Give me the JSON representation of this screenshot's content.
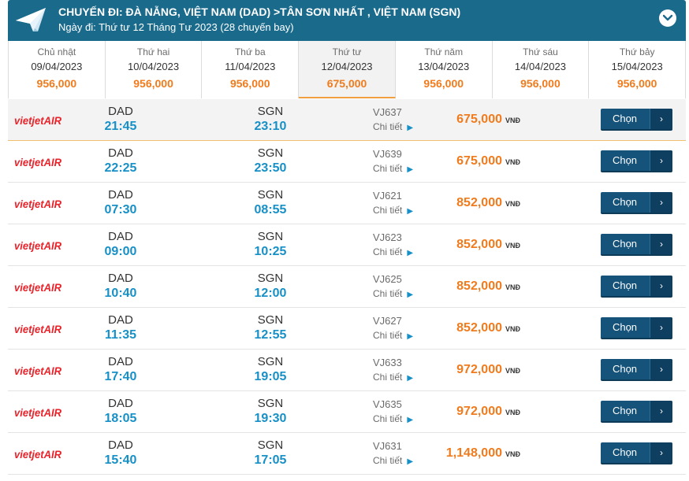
{
  "header": {
    "route": "CHUYẾN ĐI: ĐÀ NẴNG, VIỆT NAM (DAD) >TÂN SƠN NHẤT , VIỆT NAM (SGN)",
    "date_line": "Ngày đi: Thứ tư 12 Tháng Tư 2023 (28 chuyến bay)",
    "icon": "paper-plane-icon",
    "collapse_icon": "chevron-down-icon"
  },
  "dates": [
    {
      "dow": "Chủ nhật",
      "date": "09/04/2023",
      "price": "956,000",
      "active": false
    },
    {
      "dow": "Thứ hai",
      "date": "10/04/2023",
      "price": "956,000",
      "active": false
    },
    {
      "dow": "Thứ ba",
      "date": "11/04/2023",
      "price": "956,000",
      "active": false
    },
    {
      "dow": "Thứ tư",
      "date": "12/04/2023",
      "price": "675,000",
      "active": true
    },
    {
      "dow": "Thứ năm",
      "date": "13/04/2023",
      "price": "956,000",
      "active": false
    },
    {
      "dow": "Thứ sáu",
      "date": "14/04/2023",
      "price": "956,000",
      "active": false
    },
    {
      "dow": "Thứ bảy",
      "date": "15/04/2023",
      "price": "956,000",
      "active": false
    }
  ],
  "airline": {
    "logo_text": "vietjetAIR",
    "color": "#e8232a"
  },
  "labels": {
    "details": "Chi tiết",
    "currency": "VNĐ",
    "choose": "Chọn",
    "choose_arrow": "›"
  },
  "flights": [
    {
      "from": "DAD",
      "dep": "21:45",
      "to": "SGN",
      "arr": "23:10",
      "no": "VJ637",
      "price": "675,000",
      "selected": true
    },
    {
      "from": "DAD",
      "dep": "22:25",
      "to": "SGN",
      "arr": "23:50",
      "no": "VJ639",
      "price": "675,000",
      "selected": false
    },
    {
      "from": "DAD",
      "dep": "07:30",
      "to": "SGN",
      "arr": "08:55",
      "no": "VJ621",
      "price": "852,000",
      "selected": false
    },
    {
      "from": "DAD",
      "dep": "09:00",
      "to": "SGN",
      "arr": "10:25",
      "no": "VJ623",
      "price": "852,000",
      "selected": false
    },
    {
      "from": "DAD",
      "dep": "10:40",
      "to": "SGN",
      "arr": "12:00",
      "no": "VJ625",
      "price": "852,000",
      "selected": false
    },
    {
      "from": "DAD",
      "dep": "11:35",
      "to": "SGN",
      "arr": "12:55",
      "no": "VJ627",
      "price": "852,000",
      "selected": false
    },
    {
      "from": "DAD",
      "dep": "17:40",
      "to": "SGN",
      "arr": "19:05",
      "no": "VJ633",
      "price": "972,000",
      "selected": false
    },
    {
      "from": "DAD",
      "dep": "18:05",
      "to": "SGN",
      "arr": "19:30",
      "no": "VJ635",
      "price": "972,000",
      "selected": false
    },
    {
      "from": "DAD",
      "dep": "15:40",
      "to": "SGN",
      "arr": "17:05",
      "no": "VJ631",
      "price": "1,148,000",
      "selected": false
    }
  ],
  "colors": {
    "header": "#1a6a8c",
    "price": "#f07b1d",
    "time": "#1690c6",
    "button": "#16537a"
  }
}
